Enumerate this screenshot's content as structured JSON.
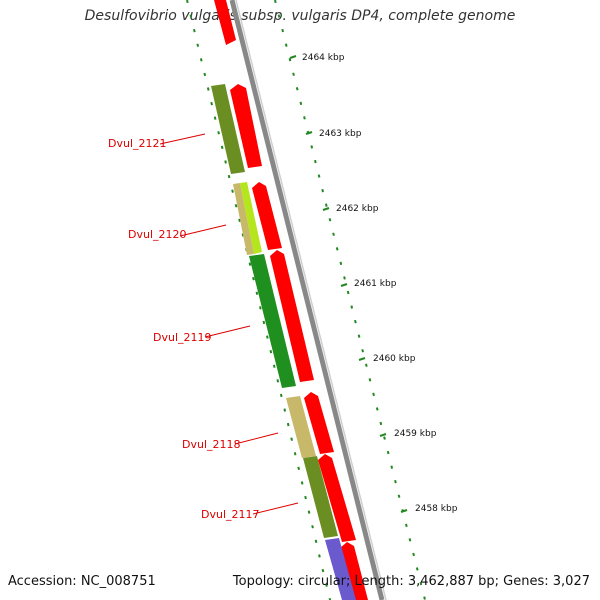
{
  "title": "Desulfovibrio vulgaris subsp. vulgaris DP4, complete genome",
  "footer": {
    "accession": "Accession: NC_008751",
    "summary": "Topology: circular; Length: 3,462,887 bp; Genes: 3,027"
  },
  "kbp_labels": [
    "2464 kbp",
    "2463 kbp",
    "2462 kbp",
    "2461 kbp",
    "2460 kbp",
    "2459 kbp",
    "2458 kbp"
  ],
  "gene_labels": [
    "Dvul_2121",
    "Dvul_2120",
    "Dvul_2119",
    "Dvul_2118",
    "Dvul_2117"
  ],
  "colors": {
    "forward_cds": "#ff0000",
    "backbone": "#888888",
    "tick": "#228822",
    "label": "#dd0000",
    "olive": "#6b8e23",
    "khaki": "#c8b86a",
    "yellowgreen": "#b5e61d",
    "green": "#1f8f1f",
    "slateblue": "#6a5acd"
  }
}
